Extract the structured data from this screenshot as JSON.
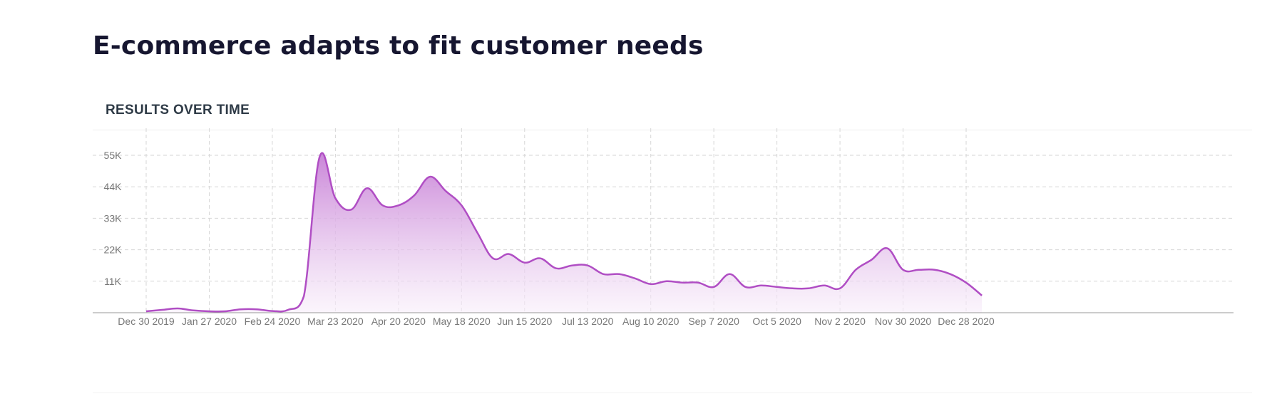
{
  "page": {
    "title": "E-commerce adapts to fit customer needs"
  },
  "panel": {
    "header": "RESULTS OVER TIME"
  },
  "chart_data": {
    "type": "area",
    "title": "RESULTS OVER TIME",
    "xlabel": "",
    "ylabel": "",
    "ylim": [
      0,
      55000
    ],
    "y_ticks": [
      11000,
      22000,
      33000,
      44000,
      55000
    ],
    "y_tick_labels": [
      "11K",
      "22K",
      "33K",
      "44K",
      "55K"
    ],
    "x_ticks": [
      "2019-12-30",
      "2020-01-27",
      "2020-02-24",
      "2020-03-23",
      "2020-04-20",
      "2020-05-18",
      "2020-06-15",
      "2020-07-13",
      "2020-08-10",
      "2020-09-07",
      "2020-10-05",
      "2020-11-02",
      "2020-11-30",
      "2020-12-28"
    ],
    "x_tick_labels": [
      "Dec 30 2019",
      "Jan 27 2020",
      "Feb 24 2020",
      "Mar 23 2020",
      "Apr 20 2020",
      "May 18 2020",
      "Jun 15 2020",
      "Jul 13 2020",
      "Aug 10 2020",
      "Sep 7 2020",
      "Oct 5 2020",
      "Nov 2 2020",
      "Nov 30 2020",
      "Dec 28 2020"
    ],
    "grid": true,
    "colors": {
      "line": "#b04ec4",
      "fill_top": "#c77fd6",
      "fill_bottom": "#f8eefa",
      "grid": "#d6d6d6",
      "axis": "#999999"
    },
    "series": [
      {
        "x": [
          "2019-12-30",
          "2020-01-06",
          "2020-01-13",
          "2020-01-20",
          "2020-01-27",
          "2020-02-03",
          "2020-02-10",
          "2020-02-17",
          "2020-02-24",
          "2020-03-02",
          "2020-03-09",
          "2020-03-16",
          "2020-03-23",
          "2020-03-30",
          "2020-04-06",
          "2020-04-13",
          "2020-04-20",
          "2020-04-27",
          "2020-05-04",
          "2020-05-11",
          "2020-05-18",
          "2020-05-25",
          "2020-06-01",
          "2020-06-08",
          "2020-06-15",
          "2020-06-22",
          "2020-06-29",
          "2020-07-06",
          "2020-07-13",
          "2020-07-20",
          "2020-07-27",
          "2020-08-03",
          "2020-08-10",
          "2020-08-17",
          "2020-08-24",
          "2020-08-31",
          "2020-09-07",
          "2020-09-14",
          "2020-09-21",
          "2020-09-28",
          "2020-10-05",
          "2020-10-12",
          "2020-10-19",
          "2020-10-26",
          "2020-11-02",
          "2020-11-09",
          "2020-11-16",
          "2020-11-23",
          "2020-11-30",
          "2020-12-07",
          "2020-12-14",
          "2020-12-21",
          "2020-12-28",
          "2021-01-04"
        ],
        "values": [
          500,
          1000,
          1500,
          800,
          500,
          500,
          1200,
          1200,
          600,
          1000,
          5800,
          54500,
          40000,
          36000,
          43500,
          37500,
          37500,
          41000,
          47500,
          42500,
          37500,
          28000,
          19000,
          20500,
          17500,
          19000,
          15500,
          16500,
          16500,
          13500,
          13500,
          12000,
          10000,
          11000,
          10500,
          10500,
          9000,
          13500,
          9000,
          9500,
          9000,
          8500,
          8500,
          9500,
          8500,
          15000,
          18500,
          22500,
          15000,
          15000,
          15000,
          13500,
          10500,
          6000
        ]
      }
    ]
  }
}
